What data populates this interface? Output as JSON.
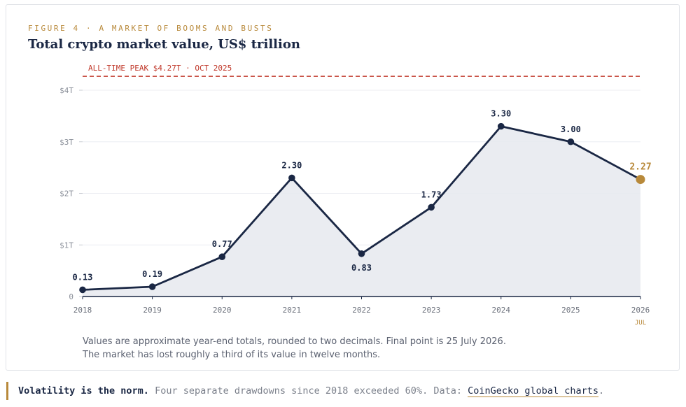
{
  "figure": {
    "eyebrow": "FIGURE 4 · A MARKET OF BOOMS AND BUSTS",
    "title": "Total crypto market value, US$ trillion"
  },
  "colors": {
    "navy": "#1a2744",
    "gold": "#b8893a",
    "peak_red": "#c0392b",
    "area_fill": "#e8eaef"
  },
  "chart_data": {
    "type": "area",
    "x": [
      "2018",
      "2019",
      "2020",
      "2021",
      "2022",
      "2023",
      "2024",
      "2025",
      "2026"
    ],
    "values": [
      0.13,
      0.19,
      0.77,
      2.3,
      0.83,
      1.73,
      3.3,
      3.0,
      2.27
    ],
    "data_labels": [
      "0.13",
      "0.19",
      "0.77",
      "2.30",
      "0.83",
      "1.73",
      "3.30",
      "3.00",
      "2.27"
    ],
    "last_point_sublabel": "JUL",
    "ylim": [
      0,
      4
    ],
    "y_ticks": [
      {
        "value": 0,
        "label": "0"
      },
      {
        "value": 1,
        "label": "$1T"
      },
      {
        "value": 2,
        "label": "$2T"
      },
      {
        "value": 3,
        "label": "$3T"
      },
      {
        "value": 4,
        "label": "$4T"
      }
    ],
    "reference_line": {
      "value": 4.27,
      "label": "ALL-TIME PEAK $4.27T · OCT 2025"
    },
    "highlight_last_point": true,
    "grid": true
  },
  "note": {
    "line1": "Values are approximate year-end totals, rounded to two decimals. Final point is 25 July 2026.",
    "line2": "The market has lost roughly a third of its value in twelve months."
  },
  "footer": {
    "lead": "Volatility is the norm.",
    "body": " Four separate drawdowns since 2018 exceeded 60%. Data: ",
    "link": "CoinGecko global charts",
    "end": "."
  }
}
